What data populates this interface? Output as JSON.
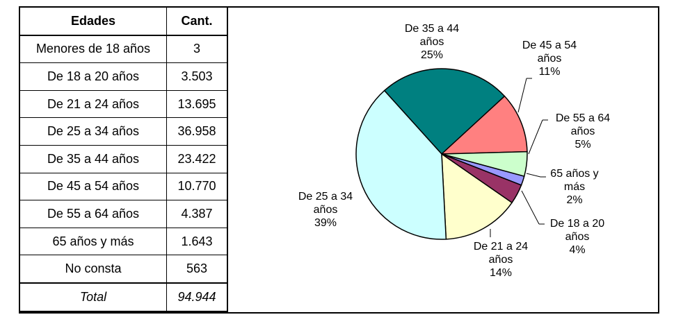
{
  "table": {
    "headers": [
      "Edades",
      "Cant."
    ],
    "rows": [
      [
        "Menores de 18 años",
        "3"
      ],
      [
        "De 18 a 20 años",
        "3.503"
      ],
      [
        "De 21 a 24 años",
        "13.695"
      ],
      [
        "De 25 a 34 años",
        "36.958"
      ],
      [
        "De 35 a 44 años",
        "23.422"
      ],
      [
        "De 45 a 54 años",
        "10.770"
      ],
      [
        "De 55 a 64 años",
        "4.387"
      ],
      [
        "65 años y más",
        "1.643"
      ],
      [
        "No consta",
        "563"
      ]
    ],
    "total": [
      "Total",
      "94.944"
    ]
  },
  "chart_data": {
    "type": "pie",
    "slices": [
      {
        "label": [
          "De 35 a 44",
          "años",
          "25%"
        ],
        "value": 23422,
        "percent": 25,
        "color": "#008080"
      },
      {
        "label": [
          "De 45 a 54",
          "años",
          "11%"
        ],
        "value": 10770,
        "percent": 11,
        "color": "#FF8080"
      },
      {
        "label": [
          "De 55 a 64",
          "años",
          "5%"
        ],
        "value": 4387,
        "percent": 5,
        "color": "#CCFFCC"
      },
      {
        "label": [
          "65 años y",
          "más",
          "2%"
        ],
        "value": 1643,
        "percent": 2,
        "color": "#9999FF"
      },
      {
        "label": [
          "De 18 a 20",
          "años",
          "4%"
        ],
        "value": 3503,
        "percent": 4,
        "color": "#993366"
      },
      {
        "label": [
          "De 21 a 24",
          "años",
          "14%"
        ],
        "value": 13695,
        "percent": 14,
        "color": "#FFFFCC"
      },
      {
        "label": [
          "De 25 a 34",
          "años",
          "39%"
        ],
        "value": 36958,
        "percent": 39,
        "color": "#CCFFFF"
      }
    ]
  }
}
